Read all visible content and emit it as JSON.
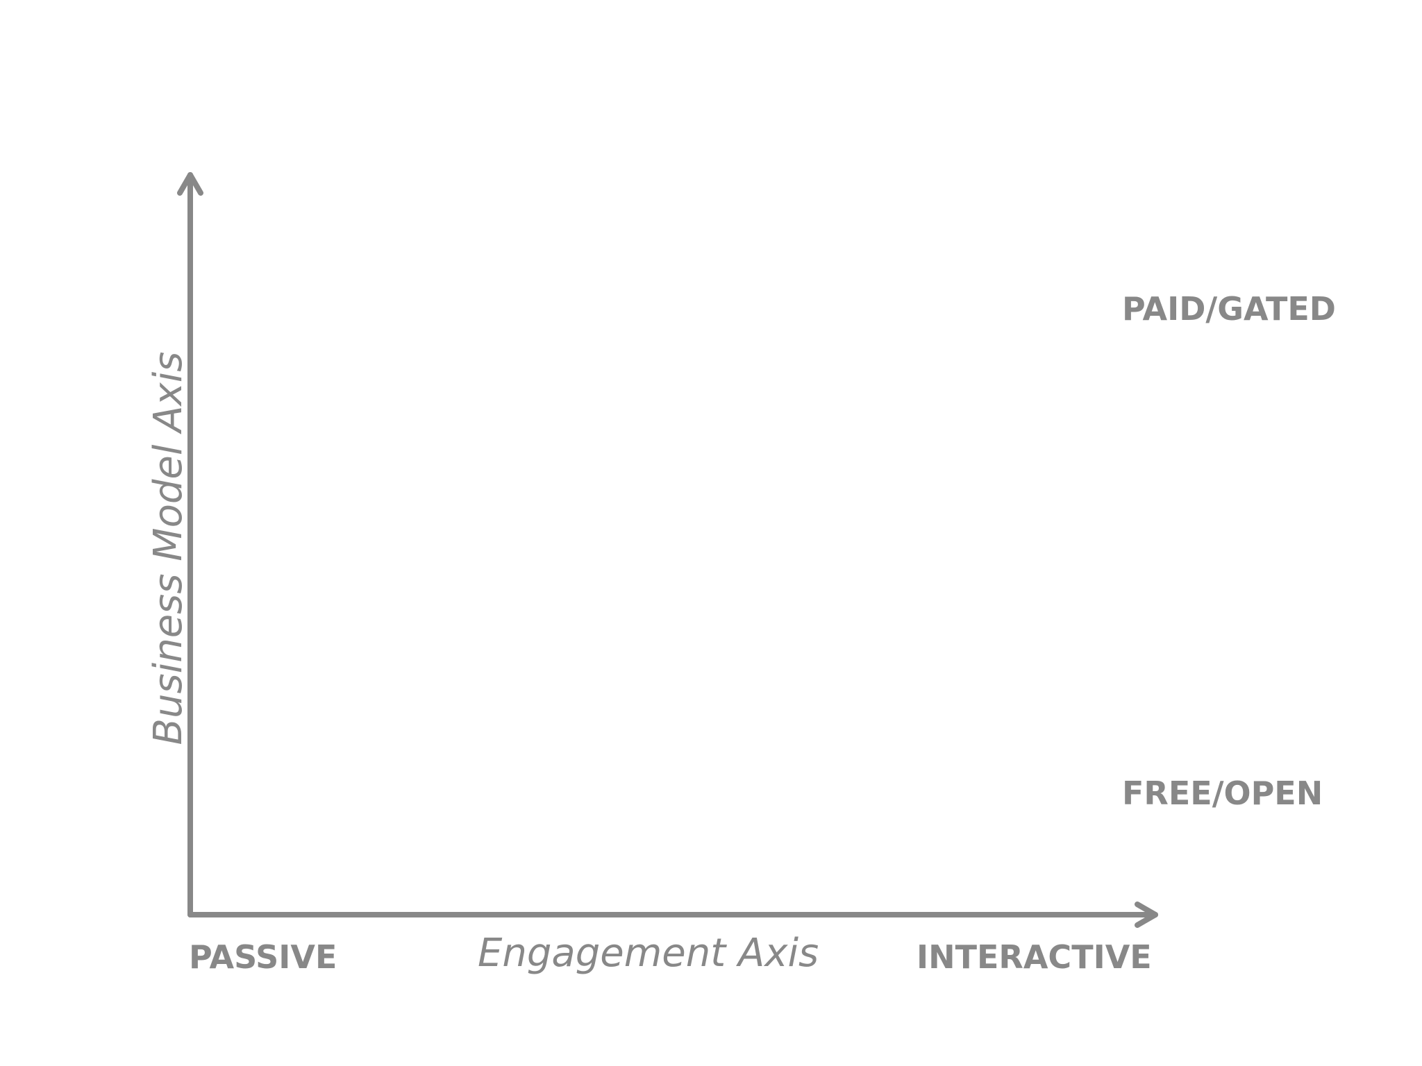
{
  "colors": {
    "axis": "#888888",
    "text": "#888888",
    "background": "#ffffff"
  },
  "x_axis": {
    "title": "Engagement Axis",
    "low_label": "PASSIVE",
    "high_label": "INTERACTIVE"
  },
  "y_axis": {
    "title": "Business Model Axis",
    "high_label": "PAID/GATED",
    "low_label": "FREE/OPEN"
  }
}
